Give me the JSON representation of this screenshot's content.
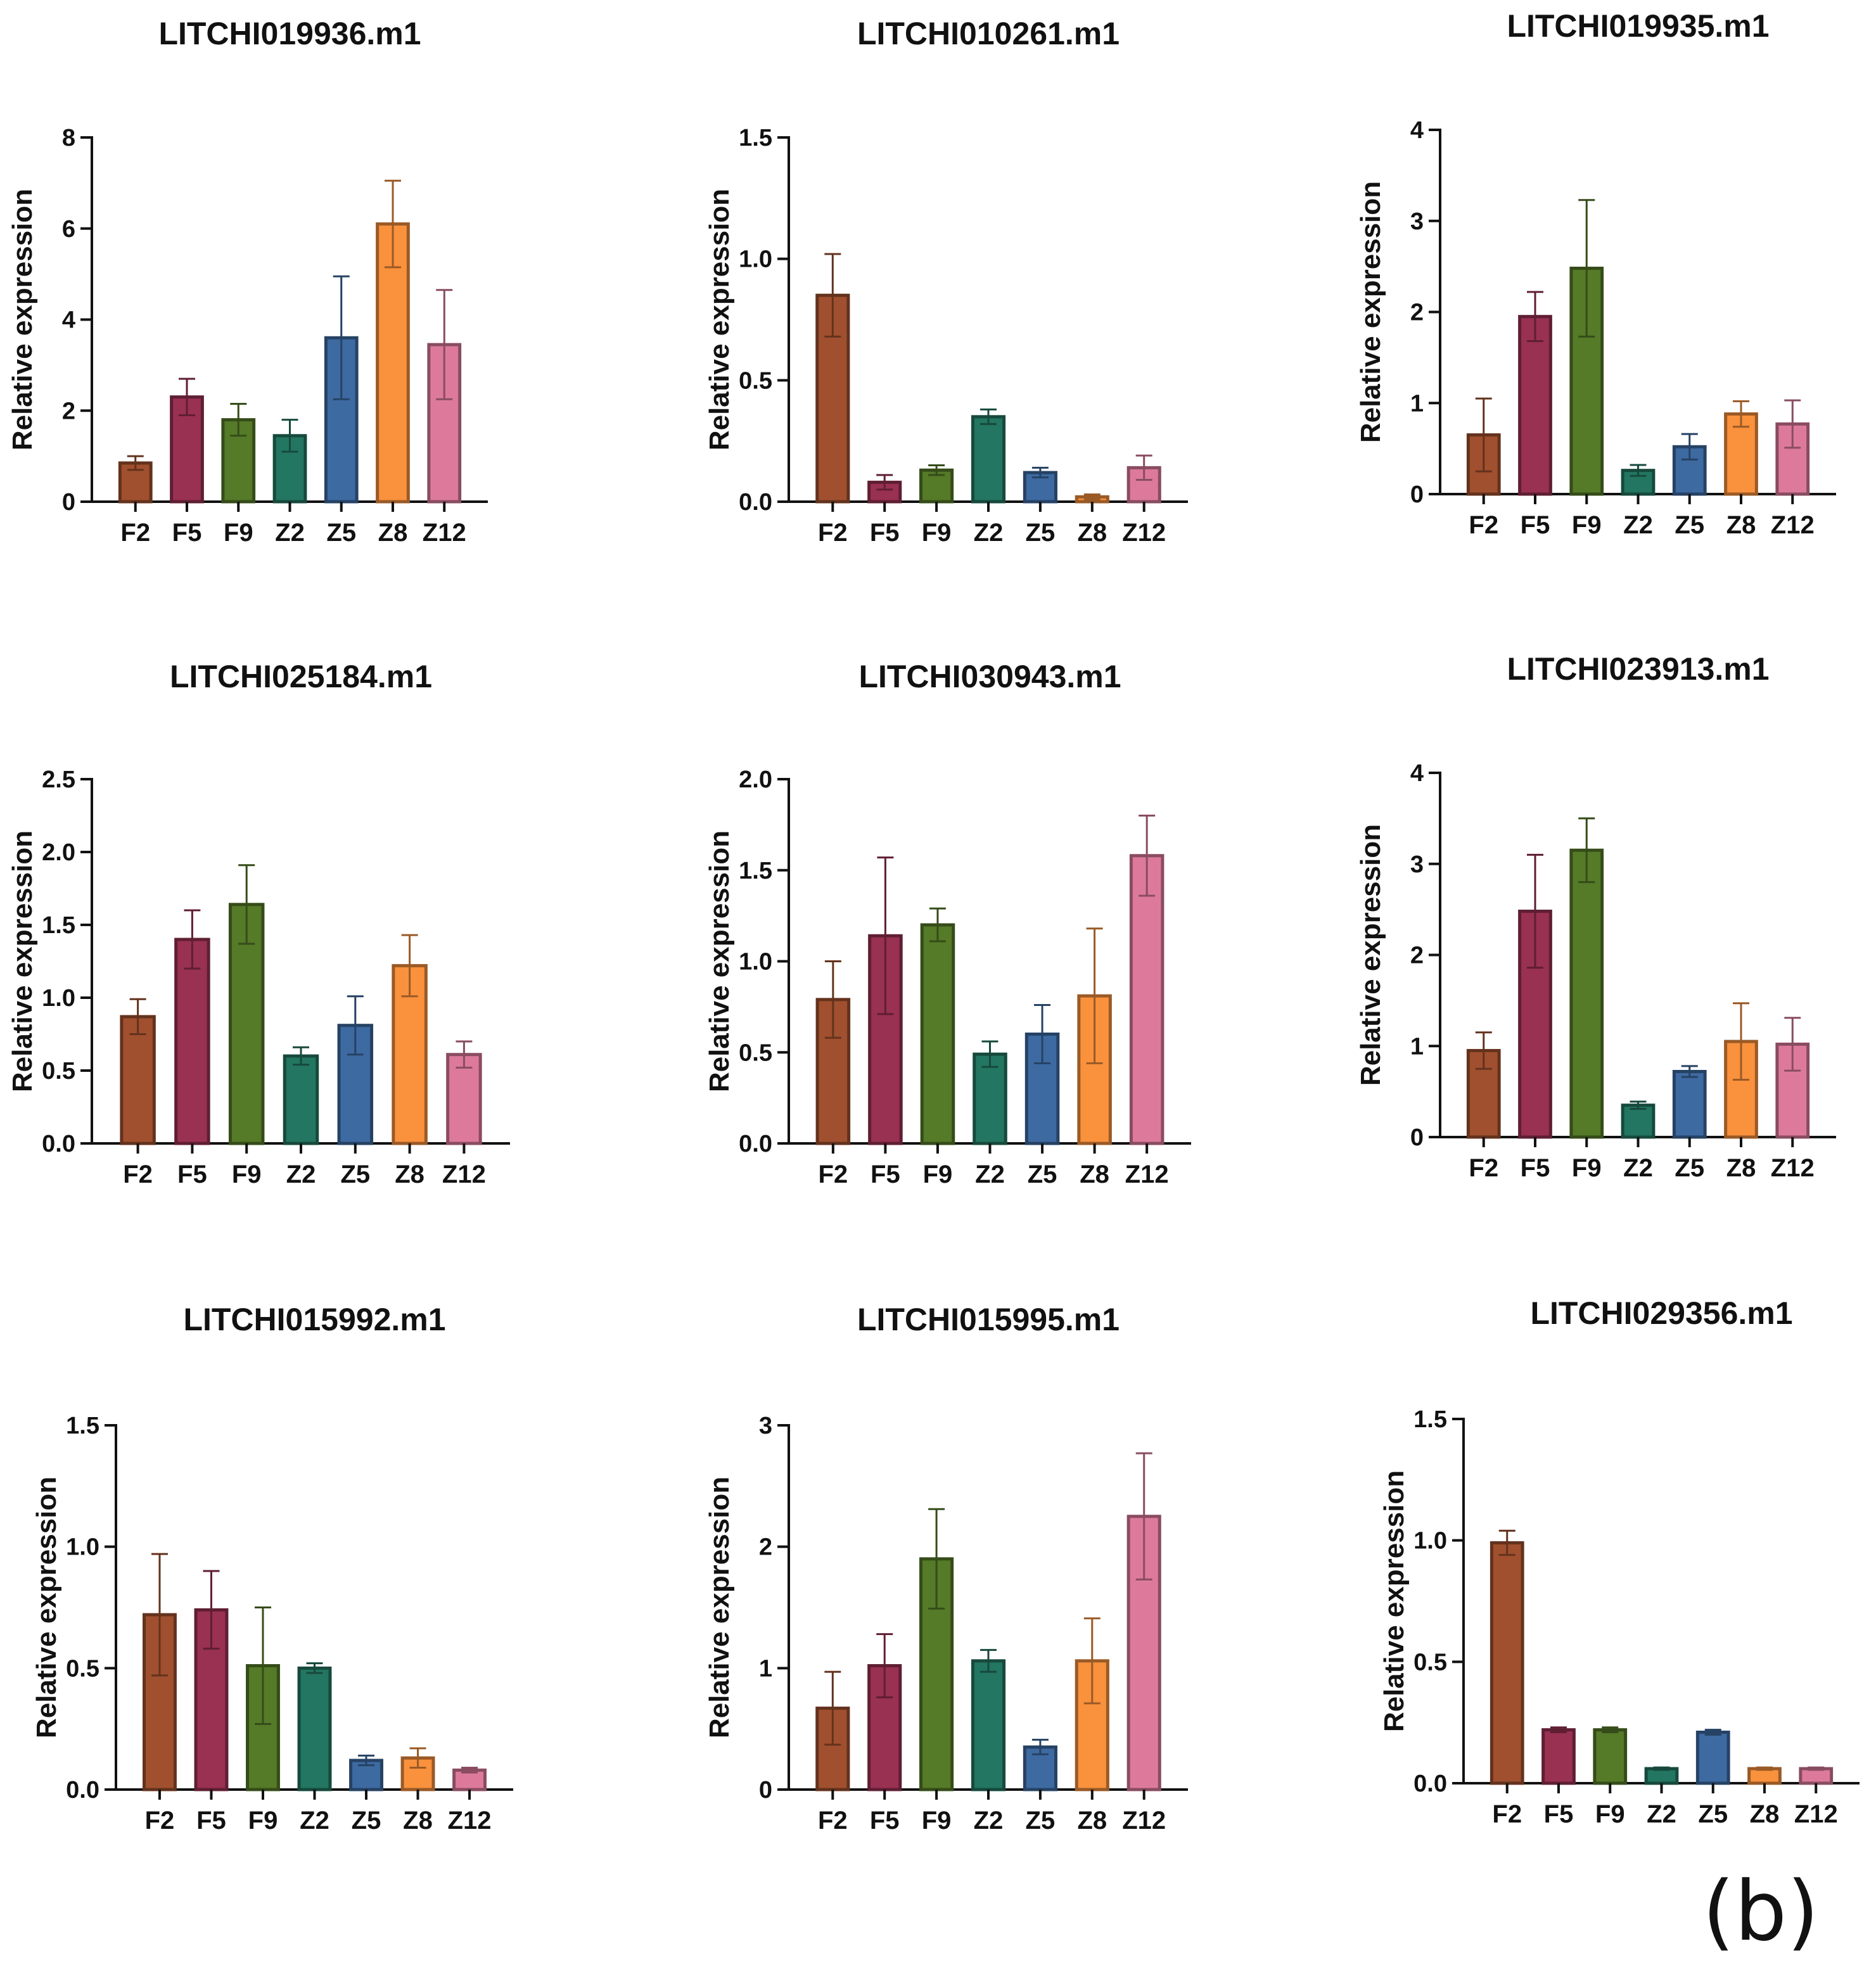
{
  "figure": {
    "panel_label": "(b)"
  },
  "colors": {
    "F2": "#a0502e",
    "F5": "#993152",
    "F9": "#557a28",
    "Z2": "#237661",
    "Z5": "#3e6aa2",
    "Z8": "#f9913d",
    "Z12": "#dd7a9b"
  },
  "chart_data": [
    {
      "type": "bar",
      "title": "LITCHI019936.m1",
      "ylabel": "Relative expression",
      "categories": [
        "F2",
        "F5",
        "F9",
        "Z2",
        "Z5",
        "Z8",
        "Z12"
      ],
      "values": [
        0.85,
        2.3,
        1.8,
        1.45,
        3.6,
        6.1,
        3.45
      ],
      "errors": [
        0.15,
        0.4,
        0.35,
        0.35,
        1.35,
        0.95,
        1.2
      ],
      "ylim": [
        0,
        8
      ],
      "yticks": [
        "0",
        "2",
        "4",
        "6",
        "8"
      ]
    },
    {
      "type": "bar",
      "title": "LITCHI010261.m1",
      "ylabel": "Relative expression",
      "categories": [
        "F2",
        "F5",
        "F9",
        "Z2",
        "Z5",
        "Z8",
        "Z12"
      ],
      "values": [
        0.85,
        0.08,
        0.13,
        0.35,
        0.12,
        0.02,
        0.14
      ],
      "errors": [
        0.17,
        0.03,
        0.02,
        0.03,
        0.02,
        0.01,
        0.05
      ],
      "ylim": [
        0,
        1.5
      ],
      "yticks": [
        "0.0",
        "0.5",
        "1.0",
        "1.5"
      ]
    },
    {
      "type": "bar",
      "title": "LITCHI019935.m1",
      "ylabel": "Relative expression",
      "categories": [
        "F2",
        "F5",
        "F9",
        "Z2",
        "Z5",
        "Z8",
        "Z12"
      ],
      "values": [
        0.65,
        1.95,
        2.48,
        0.26,
        0.52,
        0.88,
        0.77
      ],
      "errors": [
        0.4,
        0.27,
        0.75,
        0.06,
        0.14,
        0.14,
        0.26
      ],
      "ylim": [
        0,
        4
      ],
      "yticks": [
        "0",
        "1",
        "2",
        "3",
        "4"
      ]
    },
    {
      "type": "bar",
      "title": "LITCHI025184.m1",
      "ylabel": "Relative expression",
      "categories": [
        "F2",
        "F5",
        "F9",
        "Z2",
        "Z5",
        "Z8",
        "Z12"
      ],
      "values": [
        0.87,
        1.4,
        1.64,
        0.6,
        0.81,
        1.22,
        0.61
      ],
      "errors": [
        0.12,
        0.2,
        0.27,
        0.06,
        0.2,
        0.21,
        0.09
      ],
      "ylim": [
        0,
        2.5
      ],
      "yticks": [
        "0.0",
        "0.5",
        "1.0",
        "1.5",
        "2.0",
        "2.5"
      ]
    },
    {
      "type": "bar",
      "title": "LITCHI030943.m1",
      "ylabel": "Relative expression",
      "categories": [
        "F2",
        "F5",
        "F9",
        "Z2",
        "Z5",
        "Z8",
        "Z12"
      ],
      "values": [
        0.79,
        1.14,
        1.2,
        0.49,
        0.6,
        0.81,
        1.58
      ],
      "errors": [
        0.21,
        0.43,
        0.09,
        0.07,
        0.16,
        0.37,
        0.22
      ],
      "ylim": [
        0,
        2.0
      ],
      "yticks": [
        "0.0",
        "0.5",
        "1.0",
        "1.5",
        "2.0"
      ]
    },
    {
      "type": "bar",
      "title": "LITCHI023913.m1",
      "ylabel": "Relative expression",
      "categories": [
        "F2",
        "F5",
        "F9",
        "Z2",
        "Z5",
        "Z8",
        "Z12"
      ],
      "values": [
        0.95,
        2.48,
        3.15,
        0.35,
        0.72,
        1.05,
        1.02
      ],
      "errors": [
        0.2,
        0.62,
        0.35,
        0.04,
        0.06,
        0.42,
        0.29
      ],
      "ylim": [
        0,
        4
      ],
      "yticks": [
        "0",
        "1",
        "2",
        "3",
        "4"
      ]
    },
    {
      "type": "bar",
      "title": "LITCHI015992.m1",
      "ylabel": "Relative expression",
      "categories": [
        "F2",
        "F5",
        "F9",
        "Z2",
        "Z5",
        "Z8",
        "Z12"
      ],
      "values": [
        0.72,
        0.74,
        0.51,
        0.5,
        0.12,
        0.13,
        0.08
      ],
      "errors": [
        0.25,
        0.16,
        0.24,
        0.02,
        0.02,
        0.04,
        0.01
      ],
      "ylim": [
        0,
        1.5
      ],
      "yticks": [
        "0.0",
        "0.5",
        "1.0",
        "1.5"
      ]
    },
    {
      "type": "bar",
      "title": "LITCHI015995.m1",
      "ylabel": "Relative expression",
      "categories": [
        "F2",
        "F5",
        "F9",
        "Z2",
        "Z5",
        "Z8",
        "Z12"
      ],
      "values": [
        0.67,
        1.02,
        1.9,
        1.06,
        0.35,
        1.06,
        2.25
      ],
      "errors": [
        0.3,
        0.26,
        0.41,
        0.09,
        0.06,
        0.35,
        0.52
      ],
      "ylim": [
        0,
        3
      ],
      "yticks": [
        "0",
        "1",
        "2",
        "3"
      ]
    },
    {
      "type": "bar",
      "title": "LITCHI029356.m1",
      "ylabel": "Relative expression",
      "categories": [
        "F2",
        "F5",
        "F9",
        "Z2",
        "Z5",
        "Z8",
        "Z12"
      ],
      "values": [
        0.99,
        0.22,
        0.22,
        0.06,
        0.21,
        0.06,
        0.06
      ],
      "errors": [
        0.05,
        0.01,
        0.01,
        0.005,
        0.01,
        0.005,
        0.005
      ],
      "ylim": [
        0,
        1.5
      ],
      "yticks": [
        "0.0",
        "0.5",
        "1.0",
        "1.5"
      ]
    }
  ]
}
